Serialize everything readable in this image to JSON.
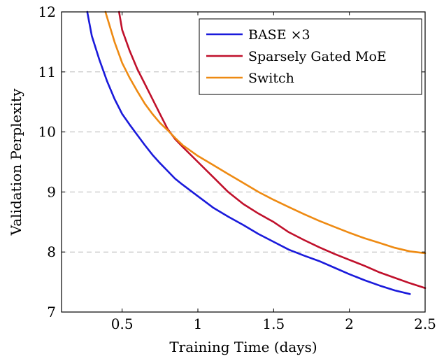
{
  "chart_data": {
    "type": "line",
    "title": "",
    "xlabel": "Training Time (days)",
    "ylabel": "Validation Perplexity",
    "xlim": [
      0.1,
      2.5
    ],
    "ylim": [
      7,
      12
    ],
    "xticks": [
      0.5,
      1,
      1.5,
      2,
      2.5
    ],
    "xtick_labels": [
      "0.5",
      "1",
      "1.5",
      "2",
      "2.5"
    ],
    "yticks": [
      7,
      8,
      9,
      10,
      11,
      12
    ],
    "ytick_labels": [
      "7",
      "8",
      "9",
      "10",
      "11",
      "12"
    ],
    "grid": "horizontal-dashed",
    "legend_position": "top-right",
    "series": [
      {
        "name": "BASE ×3",
        "color": "#1a1adb",
        "x": [
          0.27,
          0.3,
          0.35,
          0.4,
          0.45,
          0.5,
          0.55,
          0.6,
          0.65,
          0.7,
          0.75,
          0.8,
          0.85,
          0.9,
          1.0,
          1.1,
          1.2,
          1.3,
          1.4,
          1.5,
          1.6,
          1.7,
          1.8,
          1.9,
          2.0,
          2.1,
          2.2,
          2.3,
          2.4
        ],
        "y": [
          12.0,
          11.6,
          11.2,
          10.85,
          10.55,
          10.3,
          10.12,
          9.95,
          9.78,
          9.62,
          9.48,
          9.35,
          9.22,
          9.12,
          8.93,
          8.74,
          8.59,
          8.45,
          8.3,
          8.17,
          8.04,
          7.94,
          7.85,
          7.74,
          7.63,
          7.53,
          7.44,
          7.36,
          7.3
        ]
      },
      {
        "name": "Sparsely Gated MoE",
        "color": "#c0102b",
        "x": [
          0.48,
          0.5,
          0.55,
          0.6,
          0.65,
          0.7,
          0.75,
          0.8,
          0.85,
          0.9,
          1.0,
          1.1,
          1.2,
          1.3,
          1.4,
          1.5,
          1.6,
          1.7,
          1.8,
          1.9,
          2.0,
          2.1,
          2.2,
          2.3,
          2.4,
          2.5
        ],
        "y": [
          12.0,
          11.7,
          11.35,
          11.05,
          10.8,
          10.55,
          10.3,
          10.05,
          9.88,
          9.75,
          9.5,
          9.25,
          9.0,
          8.8,
          8.64,
          8.5,
          8.33,
          8.2,
          8.08,
          7.97,
          7.87,
          7.77,
          7.66,
          7.57,
          7.48,
          7.4
        ]
      },
      {
        "name": "Switch",
        "color": "#ee8a12",
        "x": [
          0.39,
          0.45,
          0.5,
          0.55,
          0.6,
          0.65,
          0.7,
          0.75,
          0.8,
          0.85,
          0.9,
          1.0,
          1.1,
          1.2,
          1.3,
          1.4,
          1.5,
          1.6,
          1.7,
          1.8,
          1.9,
          2.0,
          2.1,
          2.2,
          2.3,
          2.4,
          2.5
        ],
        "y": [
          12.0,
          11.5,
          11.15,
          10.9,
          10.68,
          10.47,
          10.3,
          10.15,
          10.03,
          9.9,
          9.78,
          9.6,
          9.45,
          9.3,
          9.15,
          9.0,
          8.87,
          8.75,
          8.63,
          8.52,
          8.42,
          8.32,
          8.23,
          8.15,
          8.07,
          8.01,
          7.98
        ]
      }
    ]
  }
}
